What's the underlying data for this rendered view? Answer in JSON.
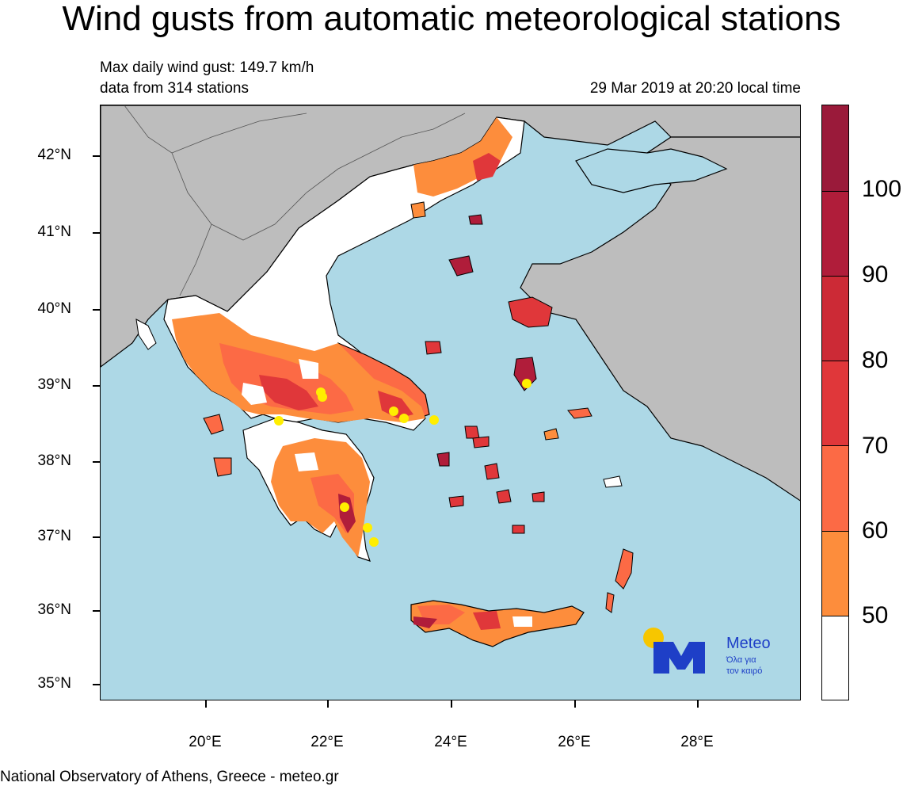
{
  "title": "Wind gusts from automatic meteorological stations",
  "subtitle": {
    "max_gust": "Max daily wind gust: 149.7 km/h",
    "stations": "data from 314 stations",
    "timestamp": "29 Mar 2019 at 20:20 local time"
  },
  "footer": "National Observatory of Athens, Greece - meteo.gr",
  "axes": {
    "lat_labels": [
      "42°N",
      "41°N",
      "40°N",
      "39°N",
      "38°N",
      "37°N",
      "36°N",
      "35°N"
    ],
    "lon_labels": [
      "20°E",
      "22°E",
      "24°E",
      "26°E",
      "28°E"
    ]
  },
  "colorbar": {
    "labels": [
      "100",
      "90",
      "80",
      "70",
      "60",
      "50"
    ],
    "colors": [
      "#9a1a3a",
      "#b01d3a",
      "#cc2a36",
      "#e0373a",
      "#fc6a45",
      "#fd8d3c",
      "#ffffff"
    ]
  },
  "colors": {
    "sea": "#add8e6",
    "foreign_land": "#bdbdbd",
    "greece_land": "#ffffff",
    "gust_50_60": "#fd8d3c",
    "gust_60_70": "#fc6a45",
    "gust_70_80": "#e0373a",
    "gust_80_plus": "#b01d3a",
    "station_marker": "#ffee00"
  },
  "logo": {
    "name": "Meteo",
    "tagline_line1": "Όλα για",
    "tagline_line2": "τον καιρό"
  }
}
